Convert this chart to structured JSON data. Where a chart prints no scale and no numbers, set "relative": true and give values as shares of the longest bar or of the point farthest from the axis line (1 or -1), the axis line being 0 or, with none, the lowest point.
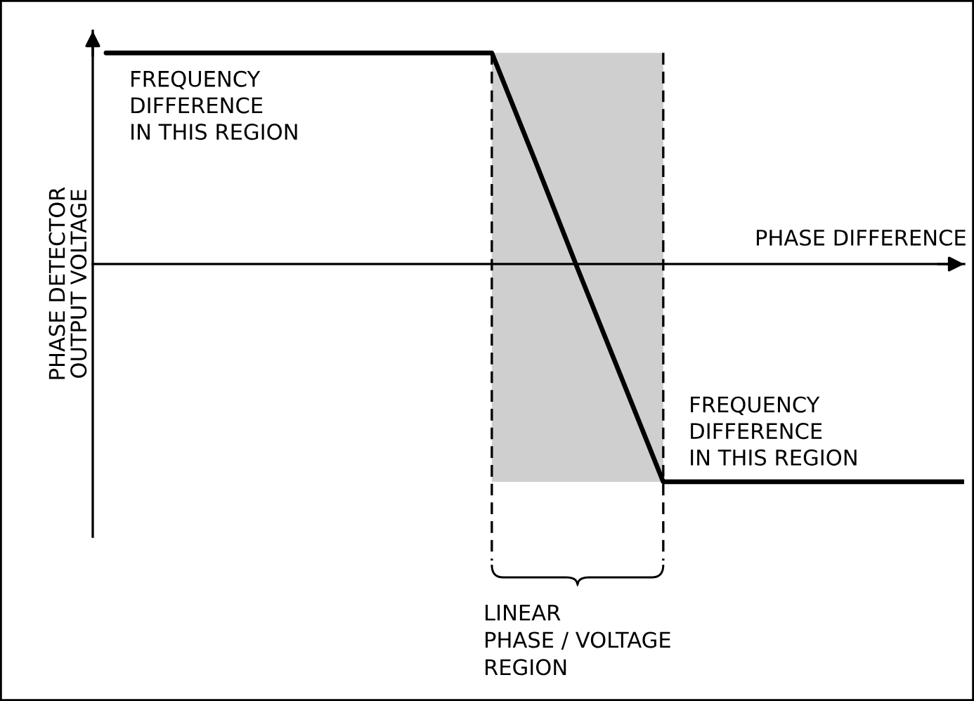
{
  "chart_data": {
    "type": "line",
    "relative": true,
    "marker": "none",
    "line_style": "solid",
    "xlabel": "PHASE DIFFERENCE",
    "ylabel": "PHASE DETECTOR\nOUTPUT VOLTAGE",
    "categories": [
      null,
      null,
      null,
      null,
      null,
      null,
      null,
      null,
      null,
      null,
      null,
      null,
      null,
      null,
      null,
      null,
      null,
      null,
      null,
      null,
      null
    ],
    "series": [
      {
        "color": "#000000",
        "values": [
          0.97,
          0.97,
          0.97,
          0.97,
          0.97,
          0.97,
          0.97,
          0.97,
          0.97,
          0.97,
          0.48,
          -0.02,
          -0.51,
          -1,
          -1,
          -1,
          -1,
          -1,
          -1,
          -1,
          -1
        ]
      }
    ],
    "annotations": [
      "FREQUENCY\nDIFFERENCE\nIN THIS REGION",
      "FREQUENCY\nDIFFERENCE\nIN THIS REGION",
      "LINEAR\nPHASE / VOLTAGE\nREGION"
    ]
  }
}
